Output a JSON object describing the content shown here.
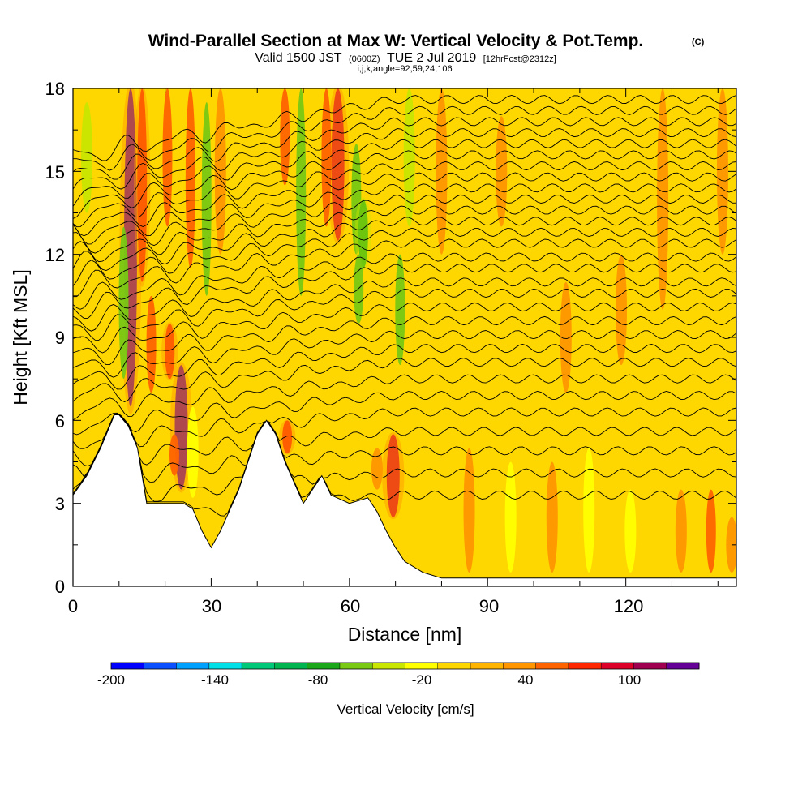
{
  "chart_data": {
    "type": "heatmap",
    "title": "Wind-Parallel Section at Max W: Vertical Velocity & Pot.Temp.",
    "title_mark": "(C)",
    "subtitle": {
      "valid": "Valid 1500 JST",
      "utc": "(0600Z)",
      "date": "TUE 2 Jul 2019",
      "forecast": "[12hrFcst@2312z]"
    },
    "grid_info": "i,j,k,angle=92,59,24,106",
    "xlabel": "Distance [nm]",
    "ylabel": "Height [Kft MSL]",
    "xlim": [
      0,
      144
    ],
    "ylim": [
      0,
      18
    ],
    "xticks": [
      "0",
      "30",
      "60",
      "90",
      "120"
    ],
    "yticks": [
      "0",
      "3",
      "6",
      "9",
      "12",
      "15",
      "18"
    ],
    "colorbar": {
      "title": "Vertical Velocity [cm/s]",
      "labels": [
        "-200",
        "-140",
        "-80",
        "-20",
        "40",
        "100"
      ],
      "range": [
        -200,
        130
      ],
      "step": 20,
      "colors": [
        "#0000ff",
        "#0a50ff",
        "#00a0ff",
        "#00e0e6",
        "#00c878",
        "#00b450",
        "#1aa81a",
        "#78c814",
        "#c8e600",
        "#ffff00",
        "#ffd700",
        "#ffb400",
        "#ff9600",
        "#ff6400",
        "#ff2800",
        "#dc0028",
        "#a00050",
        "#640096"
      ]
    },
    "colorbar_value_colors": {
      "w_-80": "#1aa81a",
      "w_-60": "#78c814",
      "w_-40": "#c8e600",
      "w_-20": "#ffff00",
      "w_0": "#ffd700",
      "w_20": "#ffb400",
      "w_40": "#ff9600",
      "w_60": "#ff6400",
      "w_80": "#ff2800",
      "w_100": "#dc0028",
      "w_120": "#640096"
    },
    "terrain_profile": {
      "x": [
        0,
        3,
        6,
        9,
        10,
        12,
        14,
        16,
        20,
        24,
        26,
        28,
        30,
        32,
        36,
        40,
        42,
        44,
        46,
        50,
        52,
        54,
        56,
        60,
        64,
        66,
        68,
        70,
        72,
        76,
        80,
        90,
        100,
        110,
        120,
        130,
        140,
        144
      ],
      "height": [
        3.3,
        4.0,
        5.0,
        6.2,
        6.2,
        5.8,
        5.0,
        3.0,
        3.0,
        3.0,
        2.8,
        2.0,
        1.4,
        2.0,
        3.5,
        5.5,
        6.0,
        5.5,
        4.5,
        3.0,
        3.5,
        4.0,
        3.3,
        3.0,
        3.2,
        2.7,
        2.0,
        1.4,
        0.9,
        0.5,
        0.3,
        0.3,
        0.3,
        0.3,
        0.3,
        0.3,
        0.3,
        0.3
      ]
    },
    "vertical_velocity_features": [
      {
        "x": 12.5,
        "ytop": 18,
        "ybottom": 6.5,
        "w": 120
      },
      {
        "x": 11,
        "ytop": 13,
        "ybottom": 7.5,
        "w": -60
      },
      {
        "x": 15,
        "ytop": 18,
        "ybottom": 11,
        "w": 80
      },
      {
        "x": 17,
        "ytop": 10.5,
        "ybottom": 7.0,
        "w": 60
      },
      {
        "x": 21,
        "ytop": 9.5,
        "ybottom": 7.5,
        "w": 80
      },
      {
        "x": 20.5,
        "ytop": 18,
        "ybottom": 13,
        "w": 60
      },
      {
        "x": 23.5,
        "ytop": 8.0,
        "ybottom": 3.5,
        "w": 120
      },
      {
        "x": 22,
        "ytop": 5.5,
        "ybottom": 4.0,
        "w": 60
      },
      {
        "x": 26,
        "ytop": 6.5,
        "ybottom": 3.2,
        "w": -20
      },
      {
        "x": 25.5,
        "ytop": 18,
        "ybottom": 11.5,
        "w": 60
      },
      {
        "x": 29,
        "ytop": 17.5,
        "ybottom": 10.5,
        "w": -60
      },
      {
        "x": 32,
        "ytop": 18,
        "ybottom": 12,
        "w": 40
      },
      {
        "x": 3,
        "ytop": 17.5,
        "ybottom": 13.5,
        "w": -40
      },
      {
        "x": 46,
        "ytop": 18,
        "ybottom": 14.5,
        "w": 60
      },
      {
        "x": 49.5,
        "ytop": 18,
        "ybottom": 10.5,
        "w": -60
      },
      {
        "x": 46.5,
        "ytop": 6.0,
        "ybottom": 4.8,
        "w": 80
      },
      {
        "x": 57.5,
        "ytop": 18,
        "ybottom": 12.5,
        "w": 100
      },
      {
        "x": 55,
        "ytop": 18,
        "ybottom": 13,
        "w": 60
      },
      {
        "x": 61.5,
        "ytop": 16,
        "ybottom": 12,
        "w": -60
      },
      {
        "x": 63,
        "ytop": 14,
        "ybottom": 11.5,
        "w": -80
      },
      {
        "x": 62,
        "ytop": 12,
        "ybottom": 9.5,
        "w": -60
      },
      {
        "x": 71,
        "ytop": 12,
        "ybottom": 8.0,
        "w": -60
      },
      {
        "x": 69.5,
        "ytop": 5.5,
        "ybottom": 2.5,
        "w": 100
      },
      {
        "x": 66,
        "ytop": 5.0,
        "ybottom": 3.5,
        "w": 40
      },
      {
        "x": 73,
        "ytop": 18,
        "ybottom": 13,
        "w": -40
      },
      {
        "x": 80,
        "ytop": 18,
        "ybottom": 12,
        "w": 40
      },
      {
        "x": 93,
        "ytop": 17,
        "ybottom": 13,
        "w": 40
      },
      {
        "x": 107,
        "ytop": 11,
        "ybottom": 7,
        "w": 40
      },
      {
        "x": 119,
        "ytop": 12,
        "ybottom": 8,
        "w": 40
      },
      {
        "x": 128,
        "ytop": 18,
        "ybottom": 10,
        "w": 40
      },
      {
        "x": 141,
        "ytop": 18,
        "ybottom": 12,
        "w": 40
      },
      {
        "x": 86,
        "ytop": 5.0,
        "ybottom": 0.5,
        "w": 40
      },
      {
        "x": 95,
        "ytop": 4.5,
        "ybottom": 0.5,
        "w": -20
      },
      {
        "x": 112,
        "ytop": 5.0,
        "ybottom": 0.5,
        "w": -20
      },
      {
        "x": 104,
        "ytop": 4.5,
        "ybottom": 0.5,
        "w": 40
      },
      {
        "x": 121,
        "ytop": 3.5,
        "ybottom": 0.5,
        "w": -20
      },
      {
        "x": 132,
        "ytop": 3.5,
        "ybottom": 0.5,
        "w": 40
      },
      {
        "x": 138.5,
        "ytop": 3.5,
        "ybottom": 0.5,
        "w": 60
      },
      {
        "x": 143,
        "ytop": 2.5,
        "ybottom": 0.5,
        "w": 40
      }
    ],
    "theta_contours": {
      "interval_k": 1,
      "heights_right_edge": [
        3.3,
        4.1,
        4.9,
        5.6,
        6.3,
        6.9,
        7.5,
        8.1,
        8.6,
        9.1,
        9.6,
        10.1,
        10.6,
        11.0,
        11.5,
        11.9,
        12.4,
        12.8,
        13.2,
        13.6,
        14.0,
        14.4,
        14.8,
        15.2,
        15.6,
        16.0,
        16.4,
        16.8,
        17.2,
        17.6
      ]
    }
  }
}
